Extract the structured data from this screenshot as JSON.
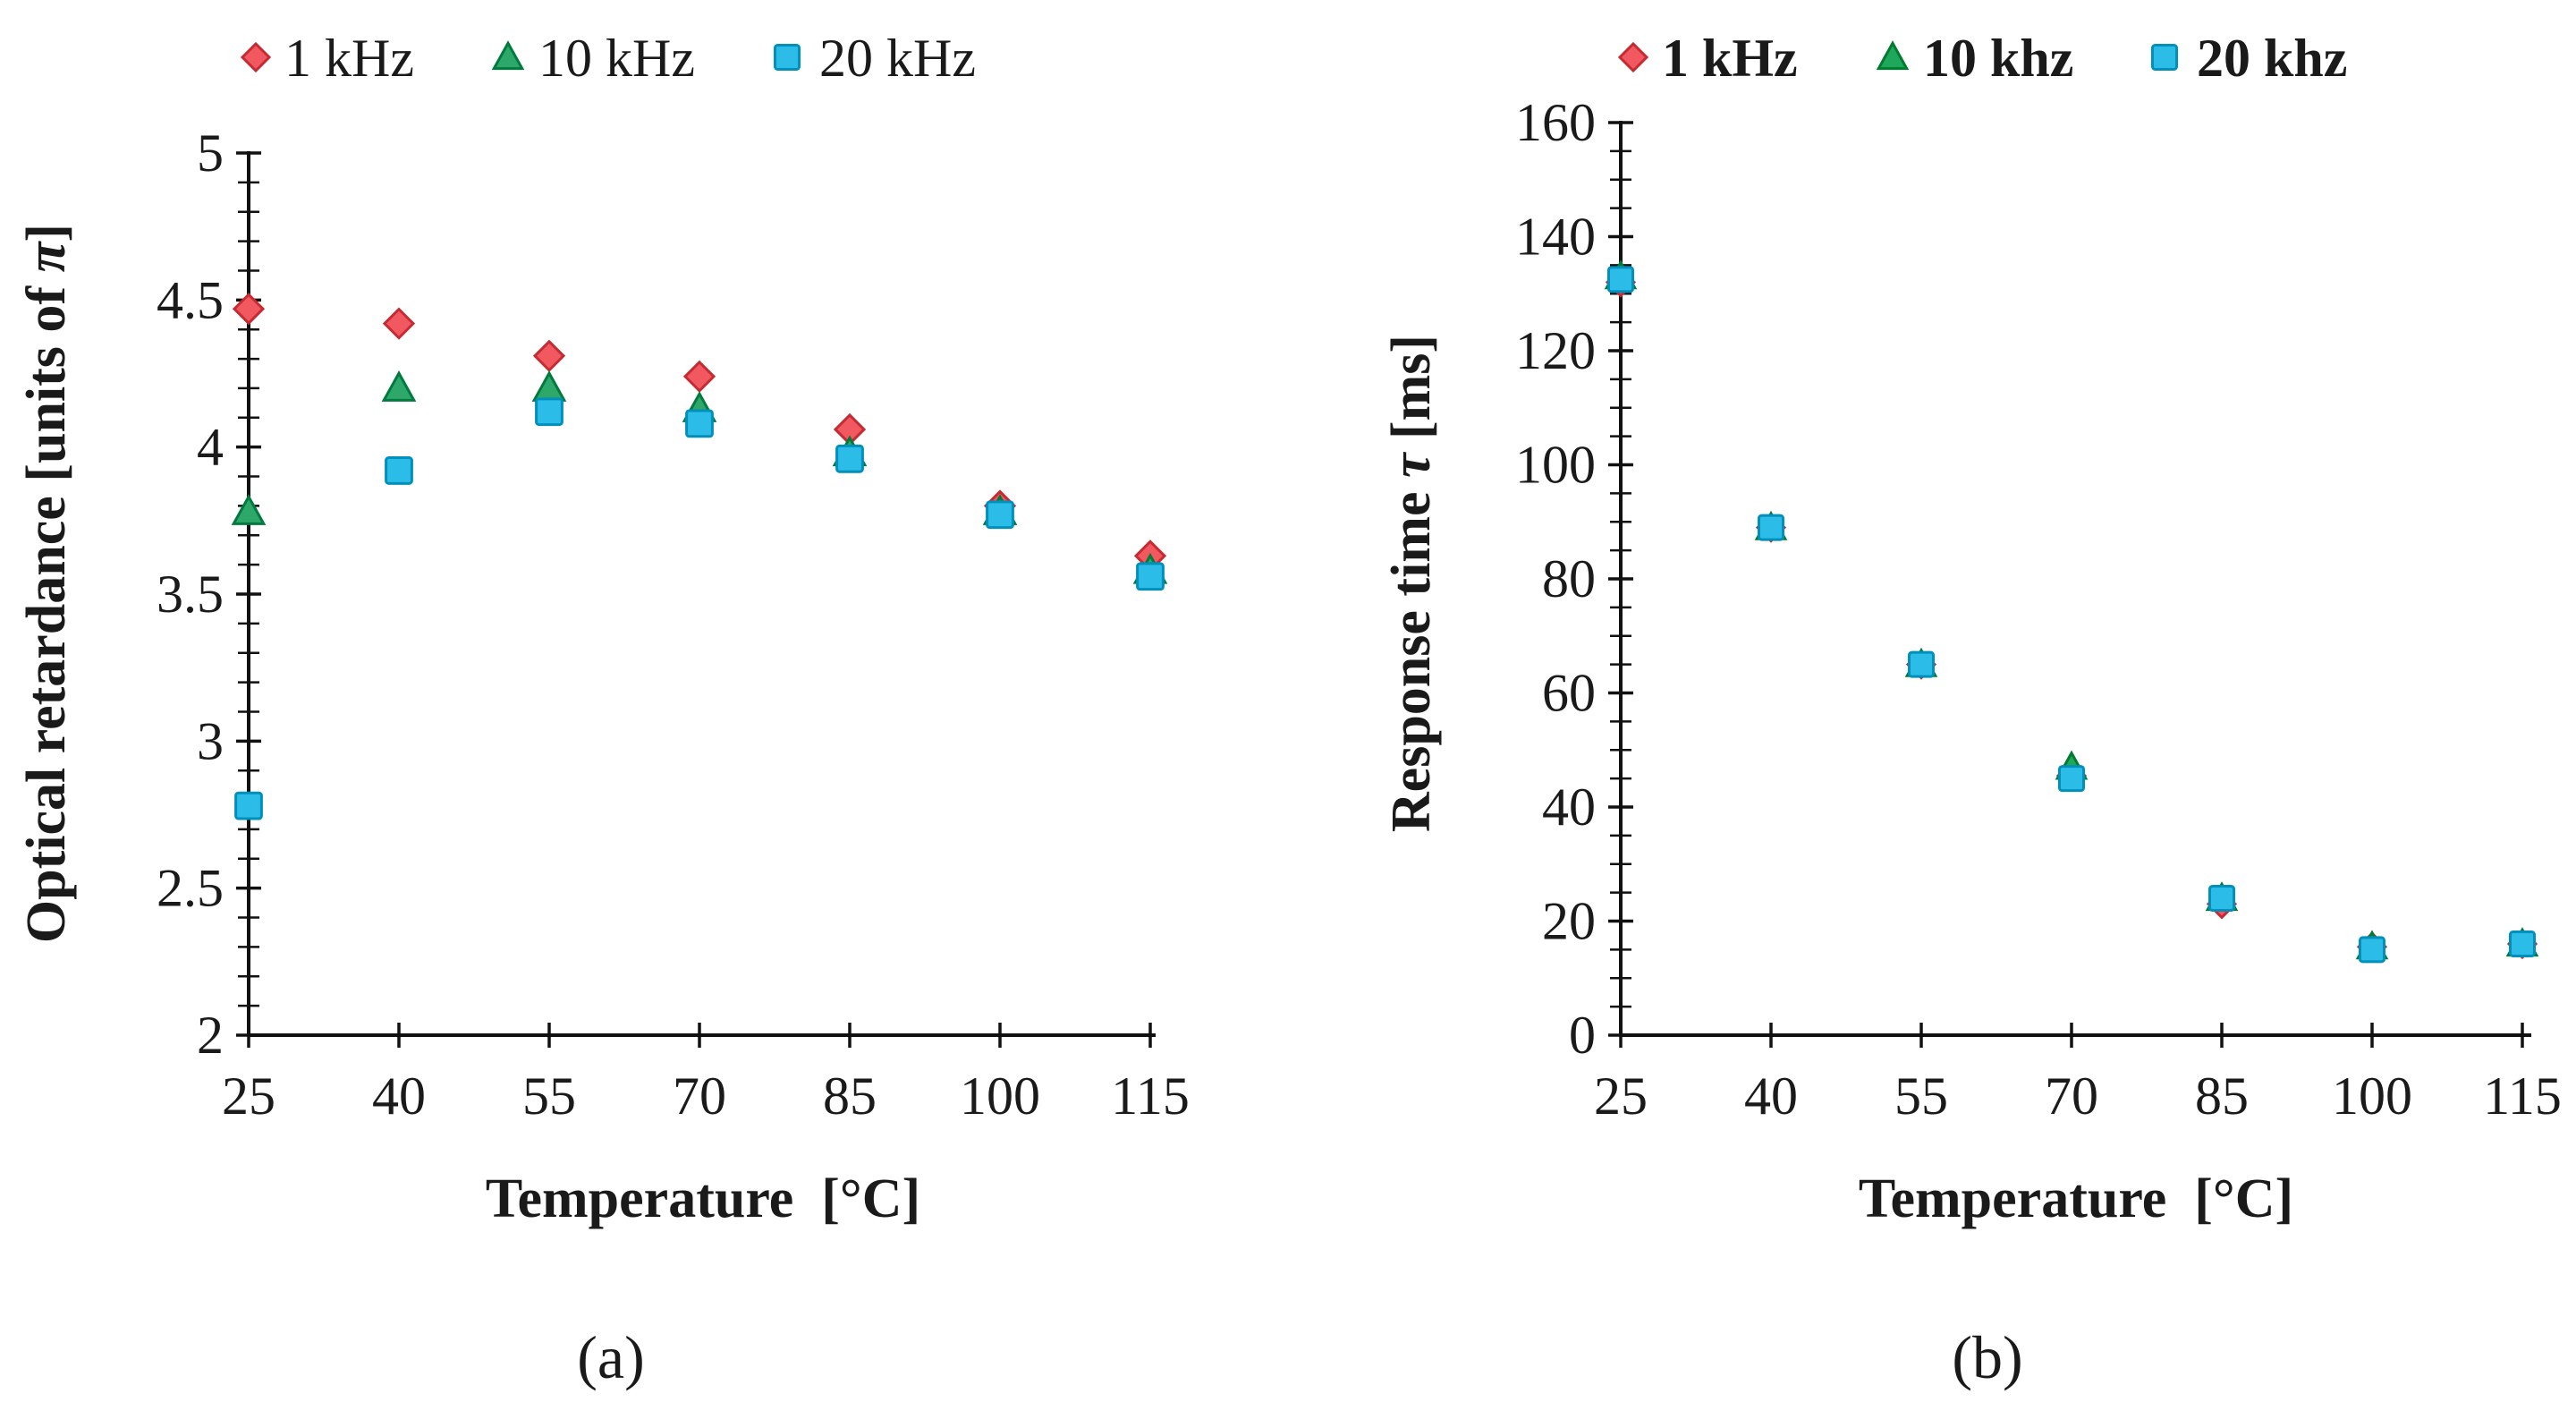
{
  "chart_data": [
    {
      "type": "scatter",
      "panel_label": "(a)",
      "xlabel": "Temperature  [°C]",
      "ylabel": "Optical retardance [units of ",
      "ylabel_symbol": "π",
      "ylabel_suffix": "]",
      "x": [
        25,
        40,
        55,
        70,
        85,
        100,
        115
      ],
      "x_ticks": [
        "25",
        "40",
        "55",
        "70",
        "85",
        "100",
        "115"
      ],
      "ylim": [
        2,
        5
      ],
      "y_ticks": [
        "2",
        "2.5",
        "3",
        "3.5",
        "4",
        "4.5",
        "5"
      ],
      "y_tick_values": [
        2,
        2.5,
        3,
        3.5,
        4,
        4.5,
        5
      ],
      "legend_position": "top",
      "series": [
        {
          "name": "1 kHz",
          "marker": "diamond",
          "color": "#f2585f",
          "values": [
            4.47,
            4.42,
            4.31,
            4.24,
            4.06,
            3.8,
            3.63
          ]
        },
        {
          "name": "10 kHz",
          "marker": "triangle",
          "color": "#2ea86a",
          "values": [
            3.78,
            4.2,
            4.2,
            4.13,
            3.98,
            3.78,
            3.58
          ]
        },
        {
          "name": "20 kHz",
          "marker": "square",
          "color": "#2bbde8",
          "values": [
            2.78,
            3.92,
            4.12,
            4.08,
            3.96,
            3.77,
            3.56
          ]
        }
      ]
    },
    {
      "type": "scatter",
      "panel_label": "(b)",
      "xlabel": "Temperature  [°C]",
      "ylabel": "Response time ",
      "ylabel_symbol": "τ",
      "ylabel_suffix": " [ms]",
      "x": [
        25,
        40,
        55,
        70,
        85,
        100,
        115
      ],
      "x_ticks": [
        "25",
        "40",
        "55",
        "70",
        "85",
        "100",
        "115"
      ],
      "ylim": [
        0,
        160
      ],
      "y_ticks": [
        "0",
        "20",
        "40",
        "60",
        "80",
        "100",
        "120",
        "140",
        "160"
      ],
      "y_tick_values": [
        0,
        20,
        40,
        60,
        80,
        100,
        120,
        140,
        160
      ],
      "legend_position": "top",
      "series": [
        {
          "name": "1 kHz",
          "marker": "diamond",
          "color": "#f2585f",
          "values": [
            132,
            89,
            65,
            45.5,
            23,
            15.5,
            16
          ]
        },
        {
          "name": "10 khz",
          "marker": "triangle",
          "color": "#1fa85c",
          "values": [
            133,
            89,
            65,
            47,
            24,
            15.5,
            16
          ]
        },
        {
          "name": "20 khz",
          "marker": "square",
          "color": "#2bbde8",
          "values": [
            132.5,
            89,
            65,
            45,
            24,
            15,
            16
          ]
        }
      ]
    }
  ]
}
